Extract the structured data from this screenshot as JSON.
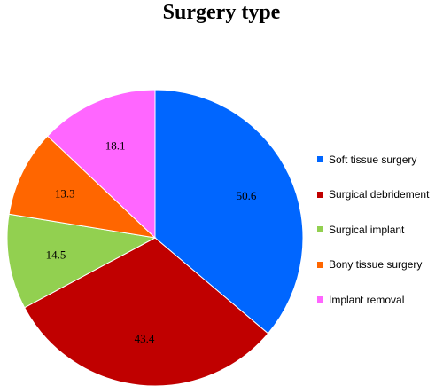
{
  "chart_data": {
    "type": "pie",
    "title": "Surgery type",
    "legend_position": "right",
    "slices": [
      {
        "label": "Soft tissue surgery",
        "value": 50.6,
        "value_label": "50.6",
        "color": "#0066ff"
      },
      {
        "label": "Surgical debridement",
        "value": 43.4,
        "value_label": "43.4",
        "color": "#c00000"
      },
      {
        "label": "Surgical implant",
        "value": 14.5,
        "value_label": "14.5",
        "color": "#92d050"
      },
      {
        "label": "Bony tissue surgery",
        "value": 13.3,
        "value_label": "13.3",
        "color": "#ff6600"
      },
      {
        "label": "Implant removal",
        "value": 18.1,
        "value_label": "18.1",
        "color": "#ff66ff"
      }
    ]
  }
}
